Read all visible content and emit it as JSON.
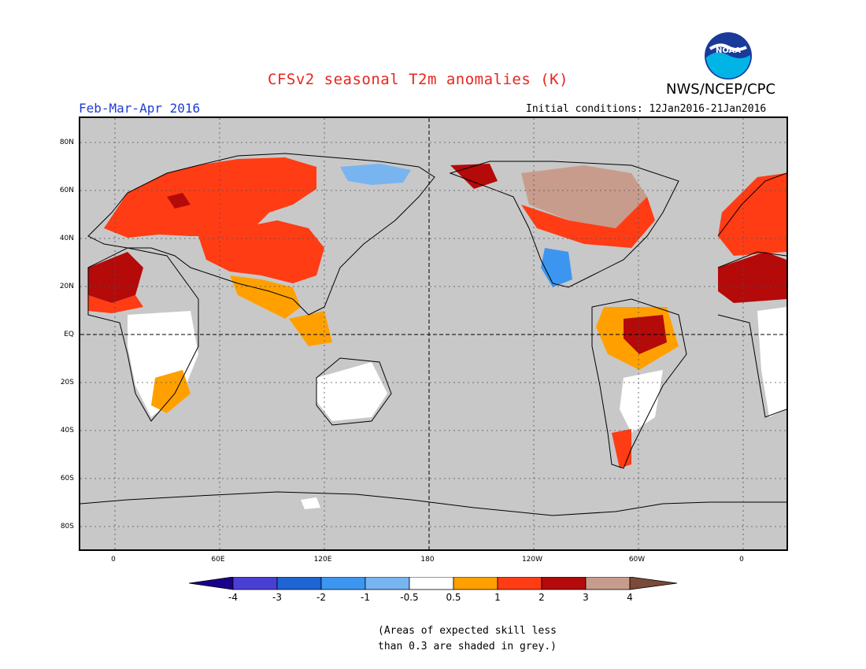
{
  "header": {
    "title": "CFSv2 seasonal T2m anomalies (K)",
    "agency": "NWS/NCEP/CPC",
    "logo_text": "NOAA",
    "season": "Feb-Mar-Apr 2016",
    "initial_conditions": "Initial conditions: 12Jan2016-21Jan2016"
  },
  "map": {
    "projection": "cylindrical equidistant",
    "center_longitude": "180",
    "background_color": "#c8c8c8",
    "lat_labels": [
      "80N",
      "60N",
      "40N",
      "20N",
      "EQ",
      "20S",
      "40S",
      "60S",
      "80S"
    ],
    "lon_labels": [
      "0",
      "60E",
      "120E",
      "180",
      "120W",
      "60W",
      "0"
    ]
  },
  "colorbar": {
    "labels": [
      "-4",
      "-3",
      "-2",
      "-1",
      "-0.5",
      "0.5",
      "1",
      "2",
      "3",
      "4"
    ],
    "colors": [
      "#1a0088",
      "#4a3fd4",
      "#1e64d2",
      "#3c96f0",
      "#78b4f0",
      "#ffffff",
      "#ffa000",
      "#ff3c14",
      "#b40a0a",
      "#c89c8c",
      "#7a4a3a"
    ]
  },
  "footnote": {
    "line1": "(Areas of expected skill less",
    "line2": "than 0.3 are shaded in grey.)"
  }
}
